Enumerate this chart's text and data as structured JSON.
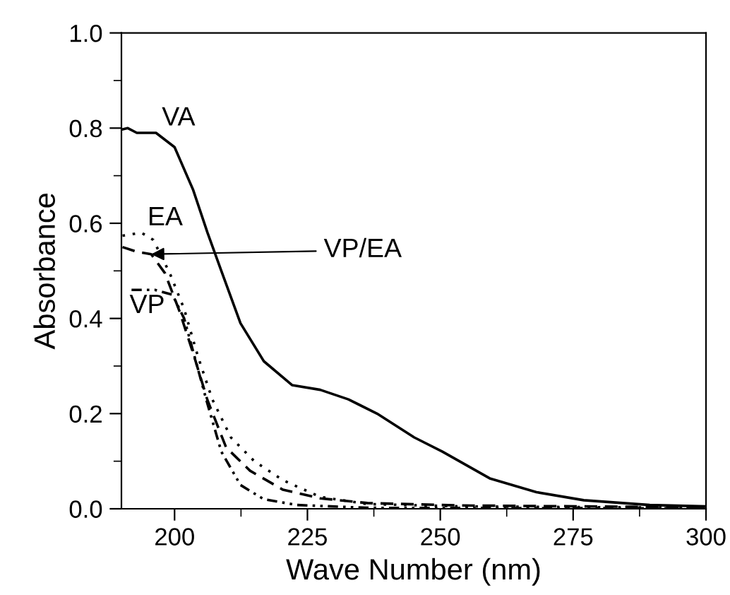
{
  "chart_data": {
    "type": "line",
    "xlabel": "Wave Number (nm)",
    "ylabel": "Absorbance",
    "xlim": [
      190,
      300
    ],
    "xticks": [
      200,
      225,
      250,
      275,
      300
    ],
    "ylim": [
      0,
      1.0
    ],
    "yticks": [
      {
        "value": 0,
        "label": "0.0"
      },
      {
        "value": 0.2,
        "label": "0.2"
      },
      {
        "value": 0.4,
        "label": "0.4"
      },
      {
        "value": 0.6,
        "label": "0.6"
      },
      {
        "value": 0.8,
        "label": "0.8"
      },
      {
        "value": 1.0,
        "label": "1.0"
      }
    ],
    "grid": false,
    "legend": false,
    "series": [
      {
        "color": "#000000",
        "line_style": "solid",
        "x": [
          190.1,
          191.2,
          192.9,
          196.5,
          200,
          203.5,
          206.2,
          208.8,
          212.4,
          216.8,
          222.1,
          227.4,
          232.7,
          238.1,
          245.1,
          250.4,
          259.3,
          268.1,
          277,
          289.4,
          300
        ],
        "values": [
          0.797,
          0.8,
          0.79,
          0.79,
          0.76,
          0.67,
          0.58,
          0.5,
          0.39,
          0.31,
          0.26,
          0.25,
          0.23,
          0.2,
          0.15,
          0.12,
          0.064,
          0.035,
          0.018,
          0.008,
          0.005
        ]
      },
      {
        "color": "#000000",
        "line_style": "dotted",
        "x": [
          190.2,
          193.8,
          196,
          199.1,
          201.8,
          204.4,
          207.1,
          210.6,
          215,
          220.4,
          227.4,
          236.3,
          254,
          300
        ],
        "values": [
          0.574,
          0.58,
          0.565,
          0.495,
          0.42,
          0.32,
          0.23,
          0.15,
          0.1,
          0.06,
          0.025,
          0.01,
          0.005,
          0.002
        ]
      },
      {
        "color": "#000000",
        "line_style": "dashed",
        "x": [
          190.2,
          192.9,
          195.6,
          198.2,
          200.9,
          203.5,
          206.2,
          209.7,
          214.2,
          220.4,
          227.4,
          236.3,
          254,
          300
        ],
        "values": [
          0.55,
          0.54,
          0.535,
          0.495,
          0.416,
          0.327,
          0.228,
          0.129,
          0.08,
          0.04,
          0.022,
          0.012,
          0.007,
          0.003
        ]
      },
      {
        "color": "#000000",
        "line_style": "dashdot",
        "x": [
          191.9,
          196.3,
          199.6,
          201.8,
          204,
          206.2,
          208.8,
          212.4,
          216.8,
          223,
          236.3,
          300
        ],
        "values": [
          0.46,
          0.46,
          0.45,
          0.4,
          0.31,
          0.22,
          0.12,
          0.05,
          0.02,
          0.008,
          0.002,
          0.001
        ]
      }
    ],
    "annotations": [
      {
        "text": "VA",
        "x": 196.5,
        "y": 0.79
      },
      {
        "text": "EA",
        "x": 193.8,
        "y": 0.58
      },
      {
        "text": "VP",
        "x": 191.9,
        "y": 0.46
      },
      {
        "text": "VP/EA",
        "x": 195.6,
        "y": 0.535
      }
    ]
  }
}
